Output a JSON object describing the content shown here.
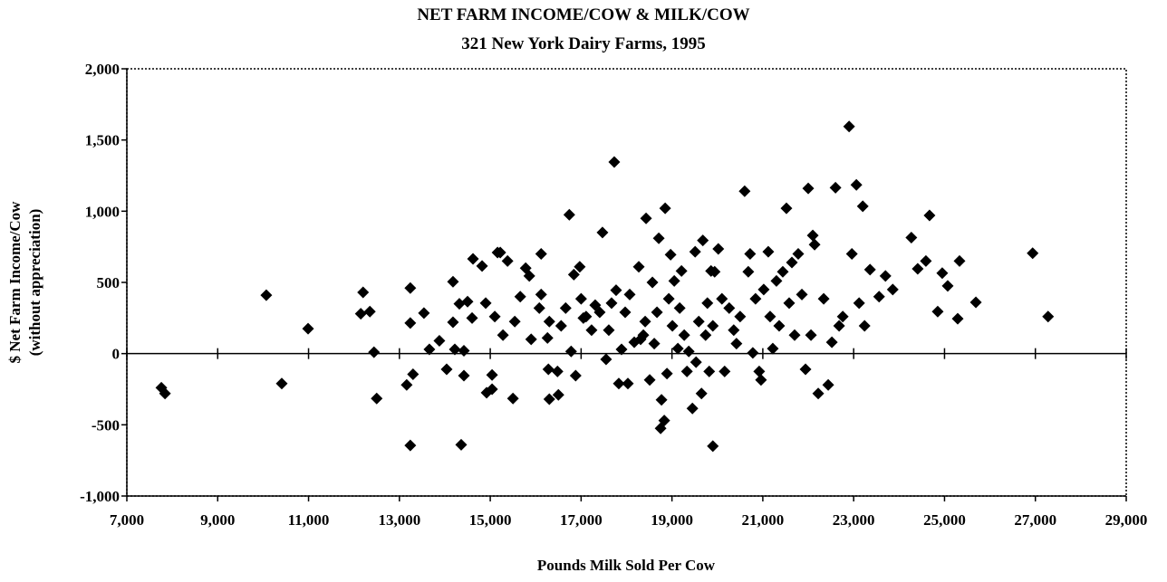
{
  "chart_data": {
    "type": "scatter",
    "title": "NET FARM INCOME/COW & MILK/COW",
    "subtitle": "321 New York Dairy Farms, 1995",
    "xlabel": "Pounds Milk Sold Per Cow",
    "ylabel": "$ Net Farm Income/Cow",
    "ylabel_note": "(without appreciation)",
    "color": "#000000",
    "xlim": [
      7000,
      29000
    ],
    "ylim": [
      -1000,
      2000
    ],
    "xticks": [
      {
        "value": 7000,
        "label": "7,000"
      },
      {
        "value": 9000,
        "label": "9,000"
      },
      {
        "value": 11000,
        "label": "11,000"
      },
      {
        "value": 13000,
        "label": "13,000"
      },
      {
        "value": 15000,
        "label": "15,000"
      },
      {
        "value": 17000,
        "label": "17,000"
      },
      {
        "value": 19000,
        "label": "19,000"
      },
      {
        "value": 21000,
        "label": "21,000"
      },
      {
        "value": 23000,
        "label": "23,000"
      },
      {
        "value": 25000,
        "label": "25,000"
      },
      {
        "value": 27000,
        "label": "27,000"
      },
      {
        "value": 29000,
        "label": "29,000"
      }
    ],
    "yticks": [
      {
        "value": -1000,
        "label": "-1,000"
      },
      -500,
      0,
      500,
      {
        "value": 1000,
        "label": "1,000"
      },
      {
        "value": 1500,
        "label": "1,500"
      },
      {
        "value": 2000,
        "label": "2,000"
      }
    ],
    "x": [
      7760,
      7840,
      10070,
      10410,
      10990,
      12150,
      12200,
      12350,
      12440,
      12500,
      13240,
      13240,
      13160,
      13300,
      13240,
      13540,
      13660,
      13880,
      14040,
      14180,
      14180,
      14220,
      14320,
      14360,
      14420,
      14420,
      14500,
      14600,
      14620,
      14820,
      14900,
      14920,
      15040,
      15040,
      15160,
      15220,
      15100,
      15280,
      15380,
      15500,
      15540,
      15660,
      15780,
      15860,
      15900,
      16080,
      16120,
      16120,
      16260,
      16300,
      16280,
      16300,
      16480,
      16500,
      16560,
      16660,
      16740,
      16780,
      16840,
      16880,
      16970,
      17000,
      17050,
      17110,
      17230,
      17310,
      17410,
      17470,
      17550,
      17610,
      17670,
      17730,
      17770,
      17830,
      17890,
      17970,
      18030,
      18070,
      18170,
      18270,
      18310,
      18370,
      18410,
      18430,
      18510,
      18570,
      18610,
      18670,
      18710,
      18750,
      18770,
      18830,
      18890,
      18850,
      18930,
      18970,
      19010,
      19050,
      19130,
      19170,
      19210,
      19270,
      19330,
      19370,
      19450,
      19510,
      19530,
      19590,
      19650,
      19680,
      19740,
      19780,
      19820,
      19860,
      19900,
      19940,
      19900,
      20020,
      20100,
      20160,
      20260,
      20360,
      20420,
      20500,
      20600,
      20680,
      20720,
      20780,
      20840,
      20920,
      20960,
      21020,
      21120,
      21160,
      21220,
      21300,
      21360,
      21440,
      21520,
      21580,
      21640,
      21700,
      21780,
      21860,
      21940,
      22000,
      22060,
      22100,
      22140,
      22220,
      22340,
      22440,
      22520,
      22600,
      22680,
      22760,
      22900,
      22960,
      23060,
      23120,
      23200,
      23240,
      23360,
      23560,
      23700,
      23860,
      24270,
      24410,
      24590,
      24670,
      24850,
      24950,
      25070,
      25290,
      25330,
      25690,
      26940,
      27280
    ],
    "values": [
      -240,
      -280,
      410,
      -210,
      175,
      280,
      430,
      295,
      10,
      -315,
      460,
      215,
      -220,
      -145,
      -645,
      285,
      30,
      90,
      -110,
      505,
      220,
      30,
      350,
      -640,
      20,
      -155,
      365,
      250,
      665,
      615,
      355,
      -275,
      -150,
      -250,
      710,
      710,
      260,
      130,
      650,
      -315,
      225,
      400,
      600,
      545,
      100,
      320,
      700,
      415,
      110,
      225,
      -110,
      -320,
      -125,
      -290,
      195,
      320,
      975,
      15,
      555,
      -155,
      610,
      385,
      250,
      260,
      165,
      340,
      290,
      850,
      -40,
      165,
      355,
      1345,
      445,
      -210,
      30,
      290,
      -210,
      415,
      80,
      610,
      100,
      130,
      225,
      950,
      -185,
      500,
      70,
      290,
      810,
      -525,
      -325,
      -470,
      -140,
      1020,
      385,
      695,
      195,
      510,
      35,
      320,
      580,
      130,
      -125,
      15,
      -385,
      715,
      -60,
      225,
      -280,
      795,
      130,
      355,
      -125,
      580,
      195,
      575,
      -650,
      735,
      385,
      -125,
      320,
      165,
      70,
      260,
      1140,
      575,
      700,
      5,
      385,
      -125,
      -185,
      450,
      715,
      260,
      35,
      510,
      195,
      575,
      1020,
      355,
      640,
      130,
      700,
      415,
      -110,
      1160,
      130,
      830,
      765,
      -280,
      385,
      -220,
      80,
      1165,
      195,
      260,
      1595,
      700,
      1185,
      355,
      1035,
      195,
      590,
      400,
      545,
      450,
      815,
      595,
      650,
      970,
      295,
      565,
      475,
      245,
      650,
      360,
      705,
      260
    ]
  }
}
